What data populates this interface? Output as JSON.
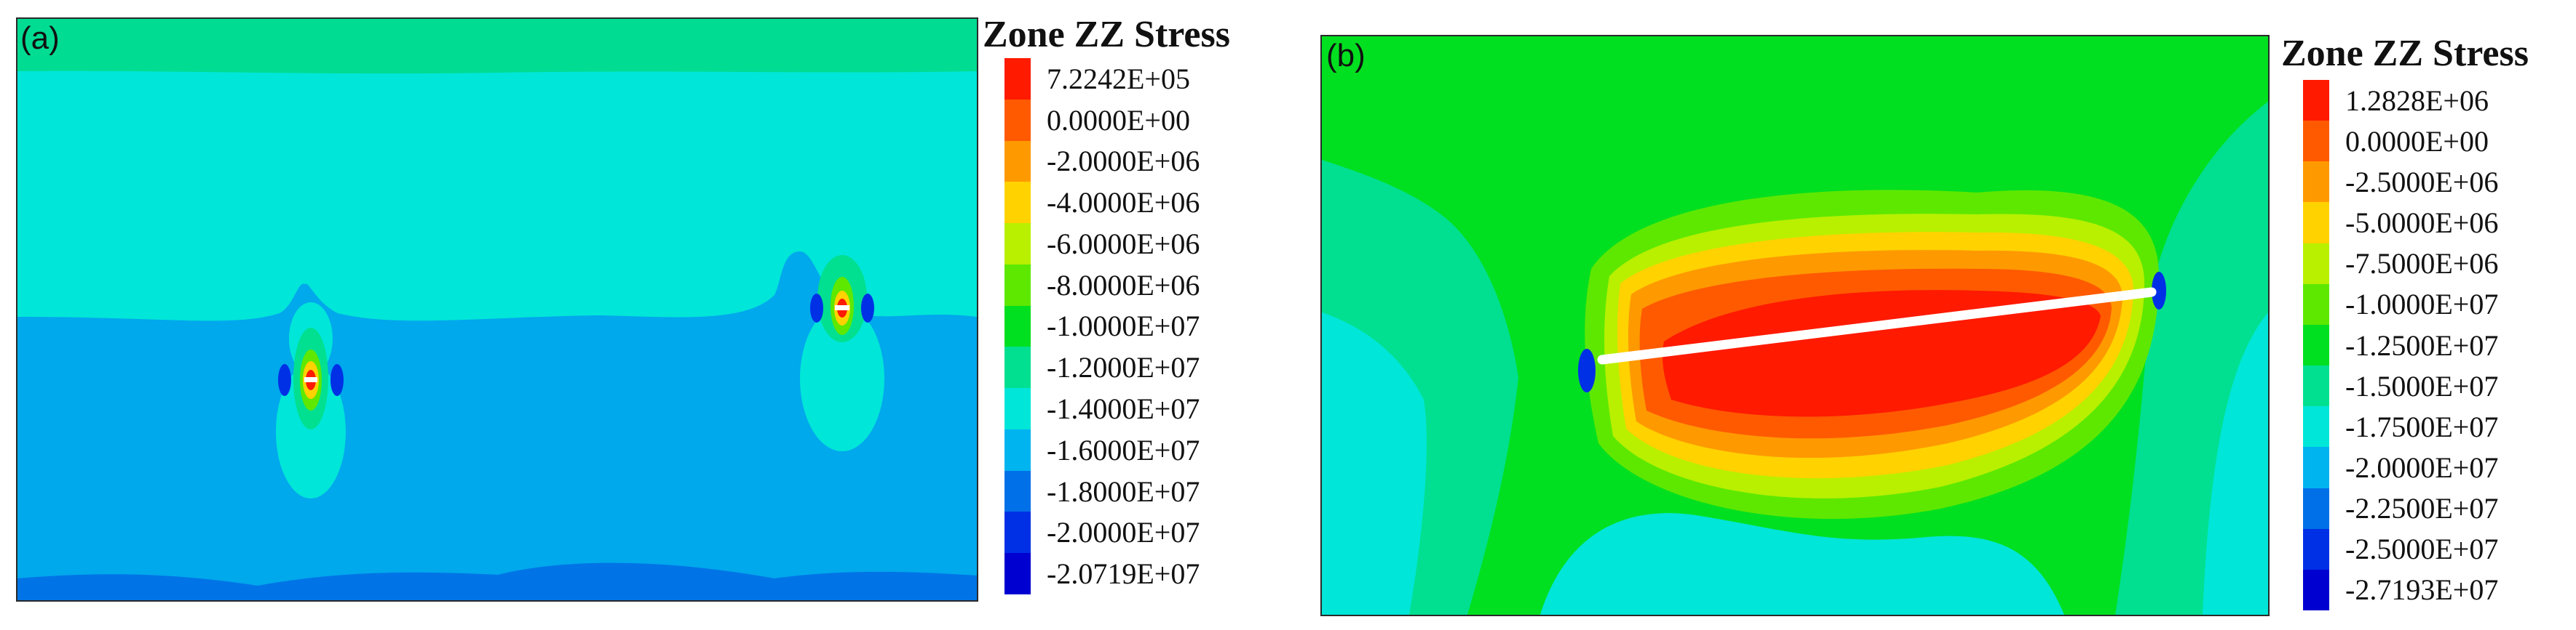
{
  "panels": [
    {
      "label": "(a)",
      "legend": {
        "title": "Zone ZZ Stress",
        "colors": [
          "#ff1a00",
          "#ff5a00",
          "#ff9900",
          "#ffd200",
          "#b8f000",
          "#5ee800",
          "#00e020",
          "#00e090",
          "#00e6d8",
          "#00b4f0",
          "#0070e8",
          "#0030e6",
          "#0000d0"
        ],
        "values": [
          "7.2242E+05",
          "0.0000E+00",
          "-2.0000E+06",
          "-4.0000E+06",
          "-6.0000E+06",
          "-8.0000E+06",
          "-1.0000E+07",
          "-1.2000E+07",
          "-1.4000E+07",
          "-1.6000E+07",
          "-1.8000E+07",
          "-2.0000E+07",
          "-2.0719E+07"
        ]
      }
    },
    {
      "label": "(b)",
      "legend": {
        "title": "Zone ZZ Stress",
        "colors": [
          "#ff1a00",
          "#ff5a00",
          "#ff9900",
          "#ffd200",
          "#b8f000",
          "#5ee800",
          "#00e020",
          "#00e090",
          "#00e6d8",
          "#00b4f0",
          "#0070e8",
          "#0030e6",
          "#0000d0"
        ],
        "values": [
          "1.2828E+06",
          "0.0000E+00",
          "-2.5000E+06",
          "-5.0000E+06",
          "-7.5000E+06",
          "-1.0000E+07",
          "-1.2500E+07",
          "-1.5000E+07",
          "-1.7500E+07",
          "-2.0000E+07",
          "-2.2500E+07",
          "-2.5000E+07",
          "-2.7193E+07"
        ]
      }
    }
  ]
}
